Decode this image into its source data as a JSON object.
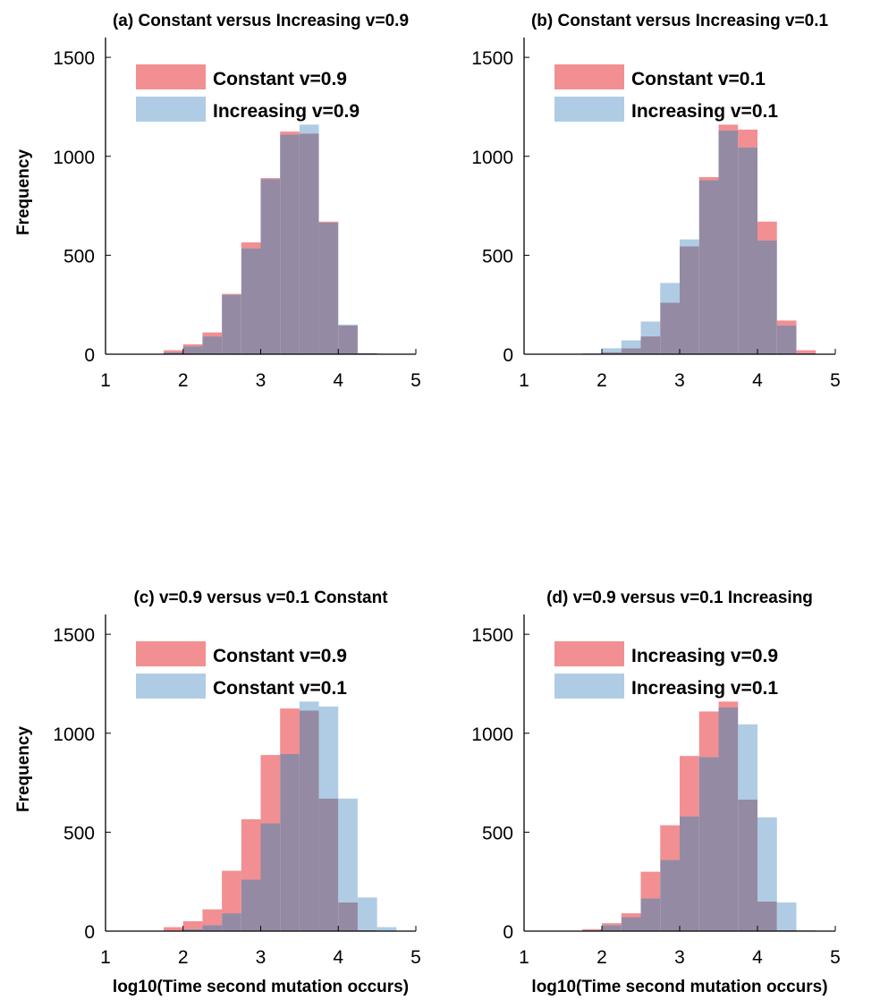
{
  "colors": {
    "series_a": "#ea4b4f",
    "series_b": "#7eadd3",
    "overlap": "#958aa3"
  },
  "chart_data": [
    {
      "type": "bar",
      "title": "(a) Constant versus Increasing v=0.9",
      "xlabel": "",
      "ylabel": "Frequency",
      "xlim": [
        1,
        5
      ],
      "ylim": [
        0,
        1600
      ],
      "xticks": [
        1,
        2,
        3,
        4,
        5
      ],
      "yticks": [
        0,
        500,
        1000,
        1500
      ],
      "legend_position": "top-left",
      "bin_edges": [
        1.75,
        2.0,
        2.25,
        2.5,
        2.75,
        3.0,
        3.25,
        3.5,
        3.75,
        4.0,
        4.25,
        4.5,
        4.75
      ],
      "series": [
        {
          "name": "Constant v=0.9",
          "values": [
            20,
            50,
            110,
            305,
            565,
            890,
            1125,
            1115,
            670,
            145,
            5,
            0
          ]
        },
        {
          "name": "Increasing  v=0.9",
          "values": [
            10,
            40,
            90,
            300,
            535,
            885,
            1110,
            1160,
            665,
            150,
            5,
            0
          ]
        }
      ]
    },
    {
      "type": "bar",
      "title": "(b) Constant versus Increasing v=0.1",
      "xlabel": "",
      "ylabel": "",
      "xlim": [
        1,
        5
      ],
      "ylim": [
        0,
        1600
      ],
      "xticks": [
        1,
        2,
        3,
        4,
        5
      ],
      "yticks": [
        0,
        500,
        1000,
        1500
      ],
      "legend_position": "top-left",
      "bin_edges": [
        1.75,
        2.0,
        2.25,
        2.5,
        2.75,
        3.0,
        3.25,
        3.5,
        3.75,
        4.0,
        4.25,
        4.5,
        4.75
      ],
      "series": [
        {
          "name": "Constant v=0.1",
          "values": [
            0,
            10,
            30,
            90,
            260,
            545,
            895,
            1160,
            1135,
            670,
            170,
            20
          ]
        },
        {
          "name": "Increasing v=0.1",
          "values": [
            5,
            30,
            70,
            165,
            360,
            580,
            880,
            1130,
            1045,
            575,
            145,
            5
          ]
        }
      ]
    },
    {
      "type": "bar",
      "title": "(c) v=0.9 versus v=0.1 Constant",
      "xlabel": "log10(Time second mutation occurs)",
      "ylabel": "Frequency",
      "xlim": [
        1,
        5
      ],
      "ylim": [
        0,
        1600
      ],
      "xticks": [
        1,
        2,
        3,
        4,
        5
      ],
      "yticks": [
        0,
        500,
        1000,
        1500
      ],
      "legend_position": "top-left",
      "bin_edges": [
        1.75,
        2.0,
        2.25,
        2.5,
        2.75,
        3.0,
        3.25,
        3.5,
        3.75,
        4.0,
        4.25,
        4.5,
        4.75
      ],
      "series": [
        {
          "name": "Constant v=0.9",
          "values": [
            20,
            50,
            110,
            305,
            565,
            890,
            1125,
            1115,
            670,
            145,
            5,
            0
          ]
        },
        {
          "name": "Constant v=0.1",
          "values": [
            0,
            10,
            30,
            90,
            260,
            545,
            895,
            1160,
            1135,
            670,
            170,
            20
          ]
        }
      ]
    },
    {
      "type": "bar",
      "title": "(d) v=0.9 versus v=0.1 Increasing",
      "xlabel": "log10(Time second mutation occurs)",
      "ylabel": "",
      "xlim": [
        1,
        5
      ],
      "ylim": [
        0,
        1600
      ],
      "xticks": [
        1,
        2,
        3,
        4,
        5
      ],
      "yticks": [
        0,
        500,
        1000,
        1500
      ],
      "legend_position": "top-left",
      "bin_edges": [
        1.75,
        2.0,
        2.25,
        2.5,
        2.75,
        3.0,
        3.25,
        3.5,
        3.75,
        4.0,
        4.25,
        4.5,
        4.75
      ],
      "series": [
        {
          "name": "Increasing v=0.9",
          "values": [
            10,
            40,
            90,
            300,
            535,
            885,
            1110,
            1160,
            665,
            150,
            5,
            0
          ]
        },
        {
          "name": "Increasing v=0.1",
          "values": [
            5,
            30,
            70,
            165,
            360,
            580,
            880,
            1130,
            1045,
            575,
            145,
            5
          ]
        }
      ]
    }
  ]
}
